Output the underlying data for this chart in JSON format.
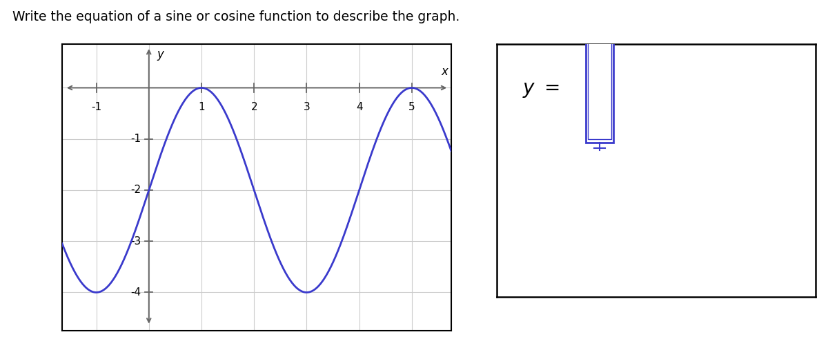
{
  "title": "Write the equation of a sine or cosine function to describe the graph.",
  "title_fontsize": 13.5,
  "title_color": "#000000",
  "curve_color": "#3a3acc",
  "curve_linewidth": 2.0,
  "amplitude": 2,
  "vertical_shift": -2,
  "B": 1.5707963267948966,
  "phase_shift": 1,
  "x_min": -1.65,
  "x_max": 5.75,
  "y_min": -4.75,
  "y_max": 0.85,
  "x_ticks": [
    -1,
    1,
    2,
    3,
    4,
    5
  ],
  "y_ticks": [
    -4,
    -3,
    -2,
    -1
  ],
  "grid_color": "#cccccc",
  "axis_color": "#666666",
  "tick_label_fontsize": 11,
  "background_color": "#ffffff",
  "box_color": "#3a3acc",
  "answer_fontsize": 20
}
